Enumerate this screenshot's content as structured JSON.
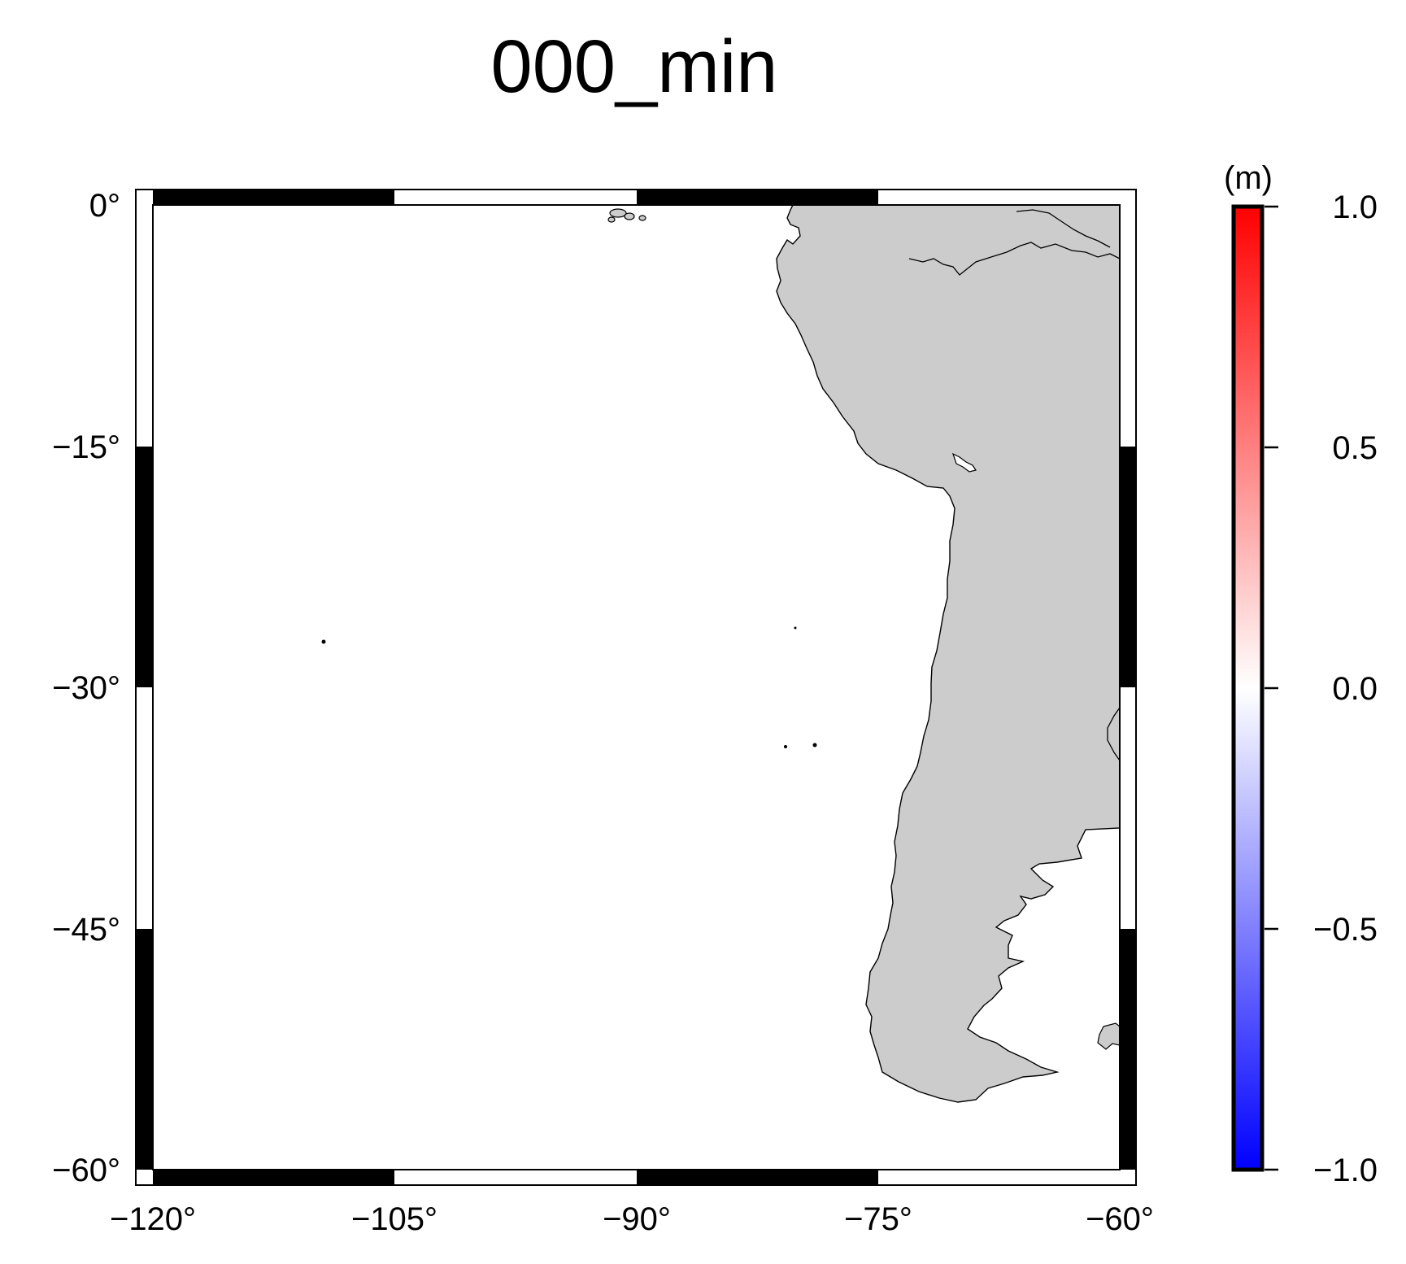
{
  "title": "000_min",
  "map": {
    "region": "South America Pacific coast",
    "projection": "Mercator",
    "lon_range": [
      -120,
      -60
    ],
    "lat_range": [
      -60,
      0
    ],
    "x_ticks": [
      "−120°",
      "−105°",
      "−90°",
      "−75°",
      "−60°"
    ],
    "y_ticks": [
      "0°",
      "−15°",
      "−30°",
      "−45°",
      "−60°"
    ],
    "land_color": "#cccccc",
    "ocean_color": "#ffffff",
    "frame_style": "checkered black/white"
  },
  "colorbar": {
    "unit_label": "(m)",
    "range": [
      -1.0,
      1.0
    ],
    "ticks": [
      "1.0",
      "0.5",
      "0.0",
      "−0.5",
      "−1.0"
    ],
    "colormap": [
      "#0000ff",
      "#ffffff",
      "#ff0000"
    ]
  }
}
